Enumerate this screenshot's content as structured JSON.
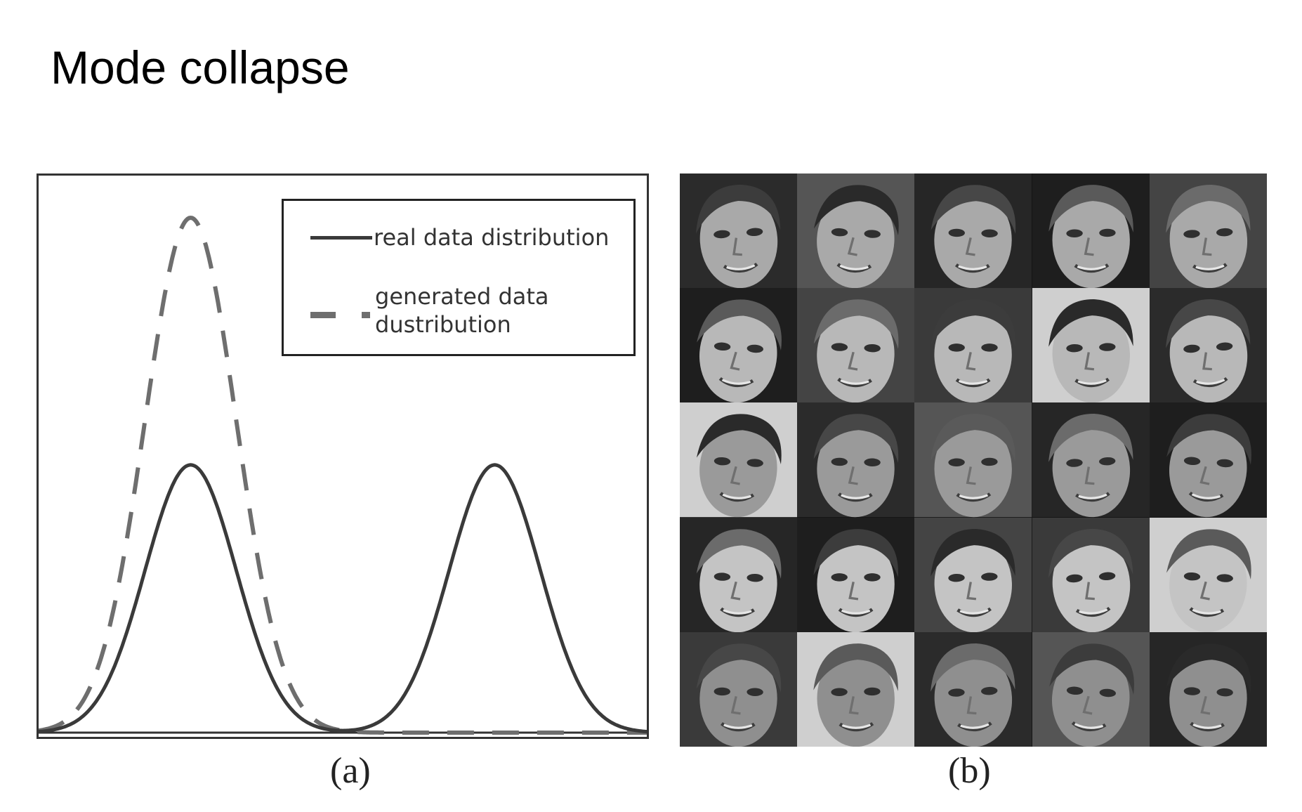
{
  "slide": {
    "title": "Mode collapse"
  },
  "panel_a": {
    "sub_label": "(a)",
    "legend": {
      "real": "real data distribution",
      "generated_line1": "generated data",
      "generated_line2": "dustribution"
    },
    "colors": {
      "real": "#3a3a3a",
      "generated": "#6e6e6e"
    }
  },
  "panel_b": {
    "sub_label": "(b)",
    "grid_rows": 5,
    "grid_cols": 5,
    "tile_image": "face-photo"
  },
  "chart_data": {
    "type": "line",
    "title": "",
    "xlabel": "",
    "ylabel": "",
    "grid": false,
    "legend_position": "top-right",
    "xlim": [
      0,
      1
    ],
    "ylim": [
      0,
      1
    ],
    "series": [
      {
        "name": "real data distribution",
        "style": "solid",
        "peaks": [
          {
            "center": 0.25,
            "height": 0.52,
            "width": 0.075
          },
          {
            "center": 0.75,
            "height": 0.52,
            "width": 0.075
          }
        ]
      },
      {
        "name": "generated data dustribution",
        "style": "dashed",
        "peaks": [
          {
            "center": 0.25,
            "height": 1.0,
            "width": 0.075
          }
        ]
      }
    ]
  }
}
